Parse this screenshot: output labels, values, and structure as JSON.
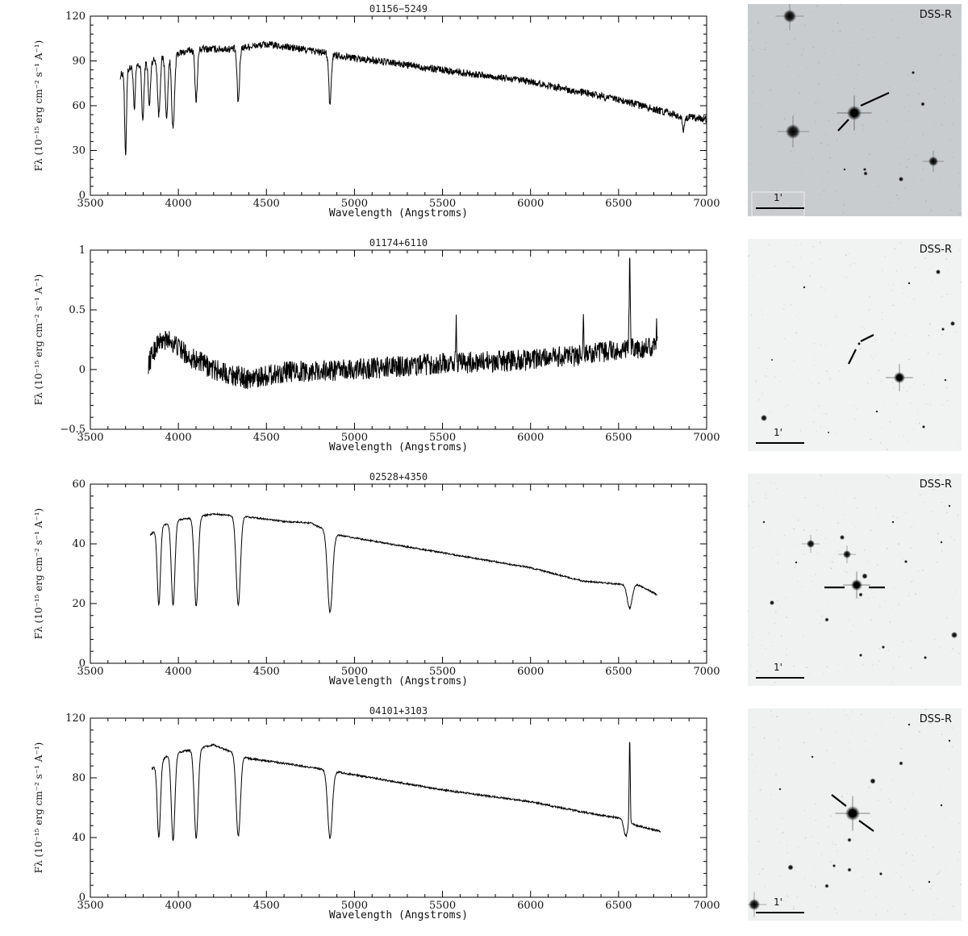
{
  "figure": {
    "sky_labels": [
      "DSS-R",
      "DSS-R",
      "DSS-R",
      "DSS-R"
    ],
    "scale_labels": [
      "1'",
      "1'",
      "1'",
      "1'"
    ]
  },
  "chart_data": [
    {
      "type": "line",
      "title": "01156−5249",
      "xlabel": "Wavelength (Angstroms)",
      "ylabel": "Fλ (10⁻¹⁵ erg cm⁻² s⁻¹ A⁻¹)",
      "xlim": [
        3500,
        7000
      ],
      "ylim": [
        0,
        120
      ],
      "xticks": [
        3500,
        4000,
        4500,
        5000,
        5500,
        6000,
        6500,
        7000
      ],
      "yticks": [
        0,
        30,
        60,
        90,
        120
      ],
      "ytick_labels": [
        "0",
        "30",
        "60",
        "90",
        "120"
      ],
      "noise": 2.5,
      "continuum": [
        [
          3670,
          80
        ],
        [
          3700,
          84
        ],
        [
          3800,
          88
        ],
        [
          3900,
          92
        ],
        [
          4000,
          95
        ],
        [
          4100,
          98
        ],
        [
          4300,
          98
        ],
        [
          4500,
          101
        ],
        [
          4700,
          98
        ],
        [
          5000,
          92
        ],
        [
          5500,
          84
        ],
        [
          6000,
          76
        ],
        [
          6500,
          64
        ],
        [
          6850,
          53
        ],
        [
          7000,
          51
        ]
      ],
      "lines": [
        {
          "x": 3700,
          "depth": 58,
          "width": 5
        },
        {
          "x": 3750,
          "depth": 30,
          "width": 5
        },
        {
          "x": 3798,
          "depth": 38,
          "width": 6
        },
        {
          "x": 3835,
          "depth": 30,
          "width": 6
        },
        {
          "x": 3889,
          "depth": 38,
          "width": 7
        },
        {
          "x": 3933,
          "depth": 42,
          "width": 7
        },
        {
          "x": 3970,
          "depth": 50,
          "width": 8
        },
        {
          "x": 4101,
          "depth": 34,
          "width": 7
        },
        {
          "x": 4340,
          "depth": 36,
          "width": 7
        },
        {
          "x": 4861,
          "depth": 34,
          "width": 7
        },
        {
          "x": 6870,
          "depth": 9,
          "width": 6
        }
      ],
      "emission": []
    },
    {
      "type": "line",
      "title": "01174+6110",
      "xlabel": "Wavelength (Angstroms)",
      "ylabel": "Fλ (10⁻¹⁵ erg cm⁻² s⁻¹ A⁻¹)",
      "xlim": [
        3500,
        7000
      ],
      "ylim": [
        -0.5,
        1
      ],
      "xticks": [
        3500,
        4000,
        4500,
        5000,
        5500,
        6000,
        6500,
        7000
      ],
      "yticks": [
        -0.5,
        0,
        0.5,
        1
      ],
      "ytick_labels": [
        "−0.5",
        "0",
        "0.5",
        "1"
      ],
      "noise": 0.09,
      "continuum": [
        [
          3830,
          0.05
        ],
        [
          3880,
          0.22
        ],
        [
          3950,
          0.25
        ],
        [
          4050,
          0.12
        ],
        [
          4200,
          0.0
        ],
        [
          4400,
          -0.08
        ],
        [
          4600,
          -0.02
        ],
        [
          5000,
          0.0
        ],
        [
          5500,
          0.05
        ],
        [
          6000,
          0.08
        ],
        [
          6300,
          0.12
        ],
        [
          6720,
          0.2
        ]
      ],
      "lines": [],
      "emission": [
        {
          "x": 5577,
          "height": 0.4,
          "width": 2
        },
        {
          "x": 6300,
          "height": 0.3,
          "width": 2
        },
        {
          "x": 6563,
          "height": 0.72,
          "width": 3
        },
        {
          "x": 6716,
          "height": 0.2,
          "width": 2
        }
      ]
    },
    {
      "type": "line",
      "title": "02528+4350",
      "xlabel": "Wavelength (Angstroms)",
      "ylabel": "Fλ (10⁻¹⁵ erg cm⁻² s⁻¹ A⁻¹)",
      "xlim": [
        3500,
        7000
      ],
      "ylim": [
        0,
        60
      ],
      "xticks": [
        3500,
        4000,
        4500,
        5000,
        5500,
        6000,
        6500,
        7000
      ],
      "yticks": [
        0,
        20,
        40,
        60
      ],
      "ytick_labels": [
        "0",
        "20",
        "40",
        "60"
      ],
      "noise": 0.25,
      "continuum": [
        [
          3840,
          43
        ],
        [
          3900,
          46
        ],
        [
          4000,
          48
        ],
        [
          4200,
          50
        ],
        [
          4400,
          49
        ],
        [
          4600,
          47.5
        ],
        [
          4750,
          47
        ],
        [
          4900,
          43
        ],
        [
          5000,
          42
        ],
        [
          5500,
          37
        ],
        [
          6000,
          32
        ],
        [
          6300,
          27.5
        ],
        [
          6500,
          26.5
        ],
        [
          6600,
          26.5
        ],
        [
          6720,
          23
        ]
      ],
      "lines": [
        {
          "x": 3889,
          "depth": 26,
          "width": 9
        },
        {
          "x": 3970,
          "depth": 28,
          "width": 10
        },
        {
          "x": 4101,
          "depth": 30,
          "width": 11
        },
        {
          "x": 4340,
          "depth": 30,
          "width": 12
        },
        {
          "x": 4861,
          "depth": 27,
          "width": 14
        },
        {
          "x": 6563,
          "depth": 8,
          "width": 14
        }
      ],
      "emission": []
    },
    {
      "type": "line",
      "title": "04101+3103",
      "xlabel": "Wavelength (Angstroms)",
      "ylabel": "Fλ (10⁻¹⁵ erg cm⁻² s⁻¹ A⁻¹)",
      "xlim": [
        3500,
        7000
      ],
      "ylim": [
        0,
        120
      ],
      "xticks": [
        3500,
        4000,
        4500,
        5000,
        5500,
        6000,
        6500,
        7000
      ],
      "yticks": [
        0,
        40,
        80,
        120
      ],
      "ytick_labels": [
        "0",
        "40",
        "80",
        "120"
      ],
      "noise": 0.6,
      "continuum": [
        [
          3850,
          86
        ],
        [
          3930,
          94
        ],
        [
          4000,
          97
        ],
        [
          4200,
          102
        ],
        [
          4400,
          93
        ],
        [
          4700,
          88
        ],
        [
          4900,
          84
        ],
        [
          5000,
          82
        ],
        [
          5500,
          72
        ],
        [
          6000,
          64
        ],
        [
          6300,
          57
        ],
        [
          6500,
          53
        ],
        [
          6600,
          48
        ],
        [
          6740,
          44
        ]
      ],
      "lines": [
        {
          "x": 3889,
          "depth": 50,
          "width": 9
        },
        {
          "x": 3970,
          "depth": 58,
          "width": 10
        },
        {
          "x": 4101,
          "depth": 60,
          "width": 11
        },
        {
          "x": 4340,
          "depth": 55,
          "width": 12
        },
        {
          "x": 4861,
          "depth": 45,
          "width": 13
        },
        {
          "x": 6540,
          "depth": 10,
          "width": 10
        }
      ],
      "emission": [
        {
          "x": 6563,
          "height": 58,
          "width": 3
        }
      ]
    }
  ]
}
